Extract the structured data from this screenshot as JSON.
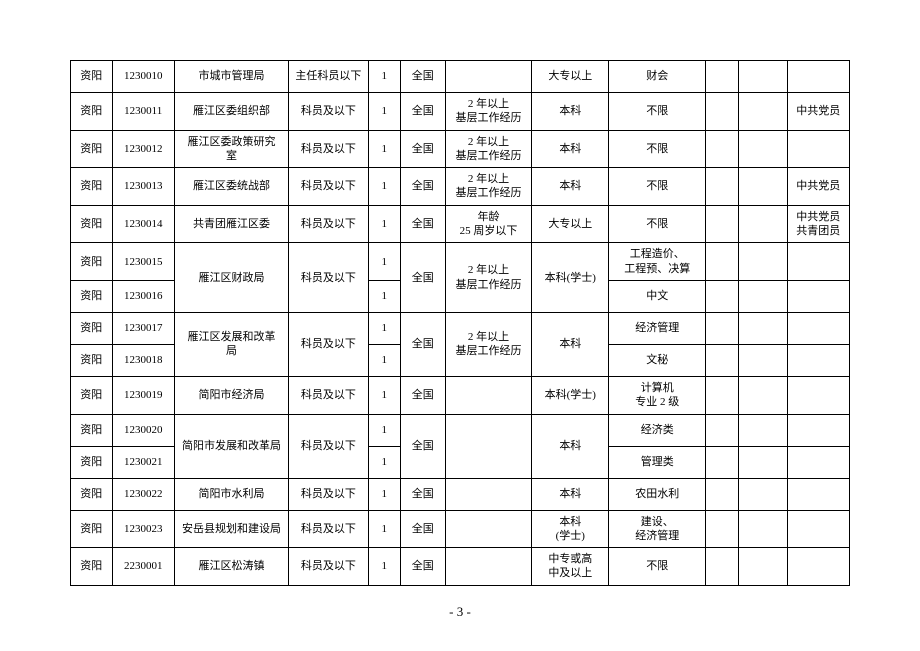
{
  "page_number": "- 3 -",
  "columns": [
    {
      "class": "c0"
    },
    {
      "class": "c1"
    },
    {
      "class": "c2"
    },
    {
      "class": "c3"
    },
    {
      "class": "c4"
    },
    {
      "class": "c5"
    },
    {
      "class": "c6"
    },
    {
      "class": "c7"
    },
    {
      "class": "c8"
    },
    {
      "class": "c9"
    },
    {
      "class": "c10"
    },
    {
      "class": "c11"
    }
  ],
  "rows": [
    [
      {
        "t": "资阳"
      },
      {
        "t": "1230010"
      },
      {
        "t": "市城市管理局"
      },
      {
        "t": "主任科员以下"
      },
      {
        "t": "1"
      },
      {
        "t": "全国"
      },
      {
        "t": ""
      },
      {
        "t": "大专以上"
      },
      {
        "t": "财会"
      },
      {
        "t": ""
      },
      {
        "t": ""
      },
      {
        "t": ""
      }
    ],
    [
      {
        "t": "资阳"
      },
      {
        "t": "1230011"
      },
      {
        "t": "雁江区委组织部"
      },
      {
        "t": "科员及以下"
      },
      {
        "t": "1"
      },
      {
        "t": "全国"
      },
      {
        "t": "2 年以上\n基层工作经历"
      },
      {
        "t": "本科"
      },
      {
        "t": "不限"
      },
      {
        "t": ""
      },
      {
        "t": ""
      },
      {
        "t": "中共党员"
      }
    ],
    [
      {
        "t": "资阳"
      },
      {
        "t": "1230012"
      },
      {
        "t": "雁江区委政策研究\n室"
      },
      {
        "t": "科员及以下"
      },
      {
        "t": "1"
      },
      {
        "t": "全国"
      },
      {
        "t": "2 年以上\n基层工作经历"
      },
      {
        "t": "本科"
      },
      {
        "t": "不限"
      },
      {
        "t": ""
      },
      {
        "t": ""
      },
      {
        "t": ""
      }
    ],
    [
      {
        "t": "资阳"
      },
      {
        "t": "1230013"
      },
      {
        "t": "雁江区委统战部"
      },
      {
        "t": "科员及以下"
      },
      {
        "t": "1"
      },
      {
        "t": "全国"
      },
      {
        "t": "2 年以上\n基层工作经历"
      },
      {
        "t": "本科"
      },
      {
        "t": "不限"
      },
      {
        "t": ""
      },
      {
        "t": ""
      },
      {
        "t": "中共党员"
      }
    ],
    [
      {
        "t": "资阳"
      },
      {
        "t": "1230014"
      },
      {
        "t": "共青团雁江区委"
      },
      {
        "t": "科员及以下"
      },
      {
        "t": "1"
      },
      {
        "t": "全国"
      },
      {
        "t": "年龄\n25 周岁以下"
      },
      {
        "t": "大专以上"
      },
      {
        "t": "不限"
      },
      {
        "t": ""
      },
      {
        "t": ""
      },
      {
        "t": "中共党员\n共青团员"
      }
    ],
    [
      {
        "t": "资阳"
      },
      {
        "t": "1230015"
      },
      {
        "t": "雁江区财政局",
        "rowspan": 2
      },
      {
        "t": "科员及以下",
        "rowspan": 2
      },
      {
        "t": "1"
      },
      {
        "t": "全国",
        "rowspan": 2
      },
      {
        "t": "2 年以上\n基层工作经历",
        "rowspan": 2
      },
      {
        "t": "本科(学士)",
        "rowspan": 2
      },
      {
        "t": "工程造价、\n工程预、决算"
      },
      {
        "t": ""
      },
      {
        "t": ""
      },
      {
        "t": ""
      }
    ],
    [
      {
        "t": "资阳"
      },
      {
        "t": "1230016"
      },
      {
        "t": "1"
      },
      {
        "t": "中文"
      },
      {
        "t": ""
      },
      {
        "t": ""
      },
      {
        "t": ""
      }
    ],
    [
      {
        "t": "资阳"
      },
      {
        "t": "1230017"
      },
      {
        "t": "雁江区发展和改革\n局",
        "rowspan": 2
      },
      {
        "t": "科员及以下",
        "rowspan": 2
      },
      {
        "t": "1"
      },
      {
        "t": "全国",
        "rowspan": 2
      },
      {
        "t": "2 年以上\n基层工作经历",
        "rowspan": 2
      },
      {
        "t": "本科",
        "rowspan": 2
      },
      {
        "t": "经济管理"
      },
      {
        "t": ""
      },
      {
        "t": ""
      },
      {
        "t": ""
      }
    ],
    [
      {
        "t": "资阳"
      },
      {
        "t": "1230018"
      },
      {
        "t": "1"
      },
      {
        "t": "文秘"
      },
      {
        "t": ""
      },
      {
        "t": ""
      },
      {
        "t": ""
      }
    ],
    [
      {
        "t": "资阳"
      },
      {
        "t": "1230019"
      },
      {
        "t": "简阳市经济局"
      },
      {
        "t": "科员及以下"
      },
      {
        "t": "1"
      },
      {
        "t": "全国"
      },
      {
        "t": ""
      },
      {
        "t": "本科(学士)"
      },
      {
        "t": "计算机\n专业 2 级"
      },
      {
        "t": ""
      },
      {
        "t": ""
      },
      {
        "t": ""
      }
    ],
    [
      {
        "t": "资阳"
      },
      {
        "t": "1230020"
      },
      {
        "t": "简阳市发展和改革局",
        "rowspan": 2
      },
      {
        "t": "科员及以下",
        "rowspan": 2
      },
      {
        "t": "1"
      },
      {
        "t": "全国",
        "rowspan": 2
      },
      {
        "t": "",
        "rowspan": 2
      },
      {
        "t": "本科",
        "rowspan": 2
      },
      {
        "t": "经济类"
      },
      {
        "t": ""
      },
      {
        "t": ""
      },
      {
        "t": ""
      }
    ],
    [
      {
        "t": "资阳"
      },
      {
        "t": "1230021"
      },
      {
        "t": "1"
      },
      {
        "t": "管理类"
      },
      {
        "t": ""
      },
      {
        "t": ""
      },
      {
        "t": ""
      }
    ],
    [
      {
        "t": "资阳"
      },
      {
        "t": "1230022"
      },
      {
        "t": "简阳市水利局"
      },
      {
        "t": "科员及以下"
      },
      {
        "t": "1"
      },
      {
        "t": "全国"
      },
      {
        "t": ""
      },
      {
        "t": "本科"
      },
      {
        "t": "农田水利"
      },
      {
        "t": ""
      },
      {
        "t": ""
      },
      {
        "t": ""
      }
    ],
    [
      {
        "t": "资阳"
      },
      {
        "t": "1230023"
      },
      {
        "t": "安岳县规划和建设局"
      },
      {
        "t": "科员及以下"
      },
      {
        "t": "1"
      },
      {
        "t": "全国"
      },
      {
        "t": ""
      },
      {
        "t": "本科\n(学士)"
      },
      {
        "t": "建设、\n经济管理"
      },
      {
        "t": ""
      },
      {
        "t": ""
      },
      {
        "t": ""
      }
    ],
    [
      {
        "t": "资阳"
      },
      {
        "t": "2230001"
      },
      {
        "t": "雁江区松涛镇"
      },
      {
        "t": "科员及以下"
      },
      {
        "t": "1"
      },
      {
        "t": "全国"
      },
      {
        "t": ""
      },
      {
        "t": "中专或高\n中及以上"
      },
      {
        "t": "不限"
      },
      {
        "t": ""
      },
      {
        "t": ""
      },
      {
        "t": ""
      }
    ]
  ]
}
